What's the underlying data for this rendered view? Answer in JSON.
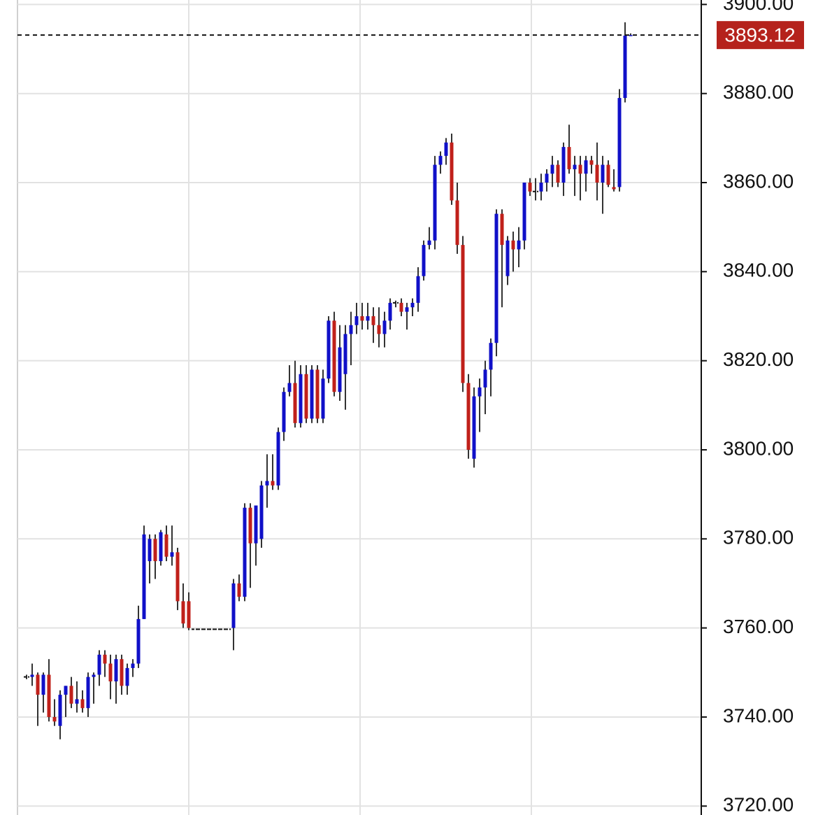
{
  "chart_data": {
    "type": "candlestick",
    "up_color": "#1010c8",
    "down_color": "#c0201a",
    "wick_color": "#333333",
    "flat_color": "#111111",
    "grid": true,
    "ylim": [
      3718,
      3901
    ],
    "yticks": [
      {
        "value": 3720,
        "label": "3720.00"
      },
      {
        "value": 3740,
        "label": "3740.00"
      },
      {
        "value": 3760,
        "label": "3760.00"
      },
      {
        "value": 3780,
        "label": "3780.00"
      },
      {
        "value": 3800,
        "label": "3800.00"
      },
      {
        "value": 3820,
        "label": "3820.00"
      },
      {
        "value": 3840,
        "label": "3840.00"
      },
      {
        "value": 3860,
        "label": "3860.00"
      },
      {
        "value": 3880,
        "label": "3880.00"
      },
      {
        "value": 3900,
        "label": "3900.00"
      }
    ],
    "last_price": 3893.12,
    "last_price_color": "#b5221c",
    "candles": [
      {
        "o": 3749,
        "h": 3749.5,
        "l": 3748.5,
        "c": 3749
      },
      {
        "o": 3749,
        "h": 3752,
        "l": 3747,
        "c": 3749.5
      },
      {
        "o": 3749.5,
        "h": 3750,
        "l": 3738,
        "c": 3745
      },
      {
        "o": 3745,
        "h": 3750,
        "l": 3741,
        "c": 3749.5
      },
      {
        "o": 3749.5,
        "h": 3753,
        "l": 3739,
        "c": 3740
      },
      {
        "o": 3740,
        "h": 3744,
        "l": 3738,
        "c": 3739
      },
      {
        "o": 3738,
        "h": 3746,
        "l": 3735,
        "c": 3745
      },
      {
        "o": 3745,
        "h": 3747,
        "l": 3740,
        "c": 3747
      },
      {
        "o": 3747,
        "h": 3749,
        "l": 3742,
        "c": 3743
      },
      {
        "o": 3743,
        "h": 3748,
        "l": 3741,
        "c": 3744
      },
      {
        "o": 3744,
        "h": 3746,
        "l": 3741,
        "c": 3742
      },
      {
        "o": 3742,
        "h": 3750,
        "l": 3740,
        "c": 3749
      },
      {
        "o": 3749,
        "h": 3750,
        "l": 3743,
        "c": 3749.5
      },
      {
        "o": 3749.5,
        "h": 3755,
        "l": 3747,
        "c": 3754
      },
      {
        "o": 3754,
        "h": 3755,
        "l": 3749,
        "c": 3752
      },
      {
        "o": 3752,
        "h": 3754,
        "l": 3744,
        "c": 3748
      },
      {
        "o": 3748,
        "h": 3754,
        "l": 3743,
        "c": 3753
      },
      {
        "o": 3753,
        "h": 3754,
        "l": 3745,
        "c": 3747
      },
      {
        "o": 3747,
        "h": 3752,
        "l": 3745,
        "c": 3751
      },
      {
        "o": 3751,
        "h": 3753,
        "l": 3749,
        "c": 3752
      },
      {
        "o": 3752,
        "h": 3765,
        "l": 3751,
        "c": 3762
      },
      {
        "o": 3762,
        "h": 3783,
        "l": 3762,
        "c": 3781
      },
      {
        "o": 3775,
        "h": 3781,
        "l": 3770,
        "c": 3780
      },
      {
        "o": 3780,
        "h": 3781,
        "l": 3771,
        "c": 3775
      },
      {
        "o": 3775,
        "h": 3782,
        "l": 3774,
        "c": 3781.5
      },
      {
        "o": 3781,
        "h": 3783,
        "l": 3775,
        "c": 3776
      },
      {
        "o": 3776,
        "h": 3783,
        "l": 3774,
        "c": 3777
      },
      {
        "o": 3777,
        "h": 3778,
        "l": 3764,
        "c": 3766
      },
      {
        "o": 3766,
        "h": 3770,
        "l": 3760,
        "c": 3761
      },
      {
        "o": 3766,
        "h": 3768,
        "l": 3759.5,
        "c": 3760
      },
      {
        "o": 3759.7,
        "h": 3759.7,
        "l": 3759.7,
        "c": 3759.7
      },
      {
        "o": 3759.7,
        "h": 3759.7,
        "l": 3759.7,
        "c": 3759.7
      },
      {
        "o": 3759.7,
        "h": 3759.7,
        "l": 3759.7,
        "c": 3759.7
      },
      {
        "o": 3759.7,
        "h": 3759.7,
        "l": 3759.7,
        "c": 3759.7
      },
      {
        "o": 3759.7,
        "h": 3759.7,
        "l": 3759.7,
        "c": 3759.7
      },
      {
        "o": 3759.7,
        "h": 3759.7,
        "l": 3759.7,
        "c": 3759.7
      },
      {
        "o": 3759.7,
        "h": 3759.7,
        "l": 3759.7,
        "c": 3759.7
      },
      {
        "o": 3760,
        "h": 3771,
        "l": 3755,
        "c": 3770
      },
      {
        "o": 3770,
        "h": 3772,
        "l": 3766,
        "c": 3767
      },
      {
        "o": 3767,
        "h": 3788,
        "l": 3766,
        "c": 3787
      },
      {
        "o": 3787,
        "h": 3788,
        "l": 3769,
        "c": 3779
      },
      {
        "o": 3779,
        "h": 3787,
        "l": 3774,
        "c": 3787.5
      },
      {
        "o": 3780,
        "h": 3793,
        "l": 3778,
        "c": 3792
      },
      {
        "o": 3792,
        "h": 3799,
        "l": 3787,
        "c": 3793
      },
      {
        "o": 3793,
        "h": 3799,
        "l": 3791,
        "c": 3792
      },
      {
        "o": 3792,
        "h": 3805,
        "l": 3791,
        "c": 3804
      },
      {
        "o": 3804,
        "h": 3814,
        "l": 3802,
        "c": 3813
      },
      {
        "o": 3813,
        "h": 3819,
        "l": 3812,
        "c": 3815
      },
      {
        "o": 3815,
        "h": 3820,
        "l": 3805,
        "c": 3806
      },
      {
        "o": 3806,
        "h": 3819,
        "l": 3805,
        "c": 3817
      },
      {
        "o": 3817,
        "h": 3819,
        "l": 3806,
        "c": 3807
      },
      {
        "o": 3807,
        "h": 3819,
        "l": 3806,
        "c": 3818
      },
      {
        "o": 3818,
        "h": 3819,
        "l": 3806,
        "c": 3807
      },
      {
        "o": 3807,
        "h": 3818,
        "l": 3806,
        "c": 3816
      },
      {
        "o": 3816,
        "h": 3830,
        "l": 3815,
        "c": 3829
      },
      {
        "o": 3829,
        "h": 3831,
        "l": 3812,
        "c": 3813
      },
      {
        "o": 3813,
        "h": 3828,
        "l": 3811,
        "c": 3823
      },
      {
        "o": 3817,
        "h": 3828,
        "l": 3809,
        "c": 3826
      },
      {
        "o": 3826,
        "h": 3831,
        "l": 3819,
        "c": 3828
      },
      {
        "o": 3828,
        "h": 3833,
        "l": 3826,
        "c": 3830
      },
      {
        "o": 3830,
        "h": 3833,
        "l": 3827,
        "c": 3829
      },
      {
        "o": 3829,
        "h": 3833,
        "l": 3827,
        "c": 3830
      },
      {
        "o": 3830,
        "h": 3832,
        "l": 3824,
        "c": 3828
      },
      {
        "o": 3828,
        "h": 3832,
        "l": 3823,
        "c": 3826
      },
      {
        "o": 3826,
        "h": 3831,
        "l": 3823,
        "c": 3829
      },
      {
        "o": 3829,
        "h": 3834,
        "l": 3827,
        "c": 3833
      },
      {
        "o": 3833,
        "h": 3833.5,
        "l": 3832,
        "c": 3833
      },
      {
        "o": 3833,
        "h": 3834,
        "l": 3830,
        "c": 3831
      },
      {
        "o": 3831,
        "h": 3833,
        "l": 3827,
        "c": 3832
      },
      {
        "o": 3832,
        "h": 3834,
        "l": 3830,
        "c": 3833
      },
      {
        "o": 3833,
        "h": 3841,
        "l": 3831,
        "c": 3839
      },
      {
        "o": 3839,
        "h": 3847,
        "l": 3838,
        "c": 3846
      },
      {
        "o": 3846,
        "h": 3850,
        "l": 3845,
        "c": 3847
      },
      {
        "o": 3847,
        "h": 3866,
        "l": 3845,
        "c": 3864
      },
      {
        "o": 3864,
        "h": 3867,
        "l": 3862,
        "c": 3866
      },
      {
        "o": 3866,
        "h": 3870,
        "l": 3864,
        "c": 3869
      },
      {
        "o": 3869,
        "h": 3871,
        "l": 3855,
        "c": 3856
      },
      {
        "o": 3856,
        "h": 3860,
        "l": 3844,
        "c": 3846
      },
      {
        "o": 3846,
        "h": 3848,
        "l": 3813,
        "c": 3815
      },
      {
        "o": 3815,
        "h": 3817,
        "l": 3798,
        "c": 3800
      },
      {
        "o": 3798,
        "h": 3814,
        "l": 3796,
        "c": 3812
      },
      {
        "o": 3812,
        "h": 3816,
        "l": 3804,
        "c": 3814
      },
      {
        "o": 3814,
        "h": 3820,
        "l": 3808,
        "c": 3818
      },
      {
        "o": 3818,
        "h": 3825,
        "l": 3812,
        "c": 3824
      },
      {
        "o": 3824,
        "h": 3854,
        "l": 3821,
        "c": 3853
      },
      {
        "o": 3853,
        "h": 3854,
        "l": 3832,
        "c": 3846
      },
      {
        "o": 3839,
        "h": 3848,
        "l": 3837,
        "c": 3847
      },
      {
        "o": 3847,
        "h": 3849,
        "l": 3840,
        "c": 3845
      },
      {
        "o": 3845,
        "h": 3850,
        "l": 3841,
        "c": 3847
      },
      {
        "o": 3847,
        "h": 3860,
        "l": 3845,
        "c": 3860
      },
      {
        "o": 3860,
        "h": 3861,
        "l": 3857,
        "c": 3858
      },
      {
        "o": 3858,
        "h": 3861,
        "l": 3856,
        "c": 3858
      },
      {
        "o": 3858,
        "h": 3862,
        "l": 3856,
        "c": 3860
      },
      {
        "o": 3860,
        "h": 3863,
        "l": 3858,
        "c": 3862
      },
      {
        "o": 3862,
        "h": 3866,
        "l": 3859,
        "c": 3864
      },
      {
        "o": 3864,
        "h": 3865,
        "l": 3859,
        "c": 3860
      },
      {
        "o": 3860,
        "h": 3869,
        "l": 3857,
        "c": 3868
      },
      {
        "o": 3868,
        "h": 3873,
        "l": 3862,
        "c": 3863
      },
      {
        "o": 3863,
        "h": 3866,
        "l": 3857,
        "c": 3864
      },
      {
        "o": 3864,
        "h": 3866,
        "l": 3856,
        "c": 3862
      },
      {
        "o": 3862,
        "h": 3866,
        "l": 3858,
        "c": 3865
      },
      {
        "o": 3865,
        "h": 3866,
        "l": 3862,
        "c": 3864
      },
      {
        "o": 3864,
        "h": 3869,
        "l": 3856,
        "c": 3860
      },
      {
        "o": 3860,
        "h": 3866,
        "l": 3853,
        "c": 3864
      },
      {
        "o": 3864,
        "h": 3865,
        "l": 3859,
        "c": 3859.5
      },
      {
        "o": 3859,
        "h": 3863,
        "l": 3858,
        "c": 3858.5
      },
      {
        "o": 3859,
        "h": 3881,
        "l": 3858,
        "c": 3879
      },
      {
        "o": 3879,
        "h": 3896,
        "l": 3878,
        "c": 3893
      },
      {
        "o": 3893,
        "h": 3893.5,
        "l": 3893,
        "c": 3893.12
      }
    ]
  }
}
